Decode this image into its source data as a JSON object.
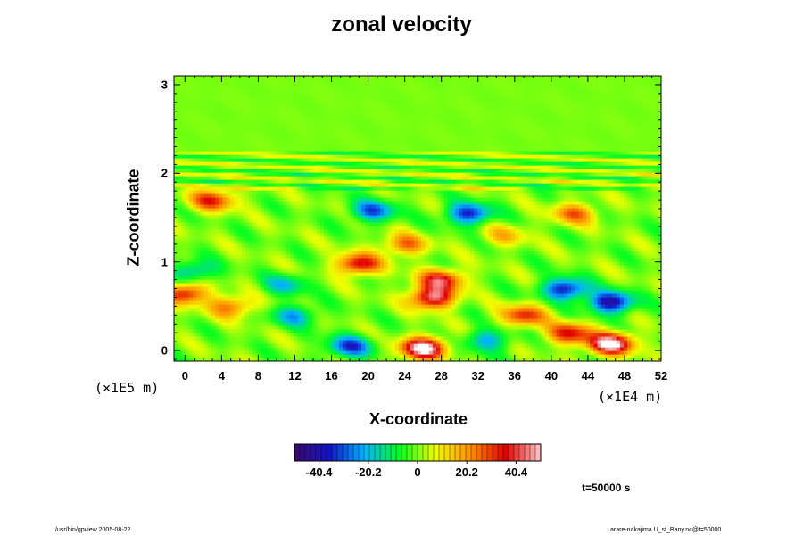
{
  "chart_data": {
    "type": "heatmap",
    "title": "zonal velocity",
    "xlabel": "X-coordinate",
    "ylabel": "Z-coordinate",
    "x_unit_label": "(×1E5 m)",
    "x_unit_label_right": "(×1E4 m)",
    "x_ticks": [
      0,
      4,
      8,
      12,
      16,
      20,
      24,
      28,
      32,
      36,
      40,
      44,
      48,
      52
    ],
    "y_ticks": [
      0,
      1,
      2,
      3
    ],
    "xlim": [
      -1.2,
      52
    ],
    "ylim": [
      -0.12,
      3.1
    ],
    "colorbar": {
      "ticks": [
        -40.4,
        -20.2,
        0,
        20.2,
        40.4
      ],
      "range": [
        -50.5,
        50.5
      ],
      "colors": [
        "#3a0a6a",
        "#1414c8",
        "#00b4ff",
        "#00ff20",
        "#f0ff00",
        "#ff9000",
        "#e00000",
        "#ffc8c8"
      ]
    },
    "features": [
      {
        "x": 27,
        "z": 0.6,
        "value": 45
      },
      {
        "x": 28,
        "z": 0.8,
        "value": 38
      },
      {
        "x": 19,
        "z": 0.98,
        "value": 38
      },
      {
        "x": 24,
        "z": 1.2,
        "value": 25
      },
      {
        "x": 26,
        "z": 0.03,
        "value": 55
      },
      {
        "x": 46.5,
        "z": 0.08,
        "value": 55
      },
      {
        "x": 42,
        "z": 0.2,
        "value": 35
      },
      {
        "x": 37,
        "z": 0.4,
        "value": 32
      },
      {
        "x": 3,
        "z": 1.7,
        "value": 32
      },
      {
        "x": 42.5,
        "z": 1.55,
        "value": 25
      },
      {
        "x": 20.5,
        "z": 1.58,
        "value": -30
      },
      {
        "x": 31,
        "z": 1.55,
        "value": -35
      },
      {
        "x": 41.5,
        "z": 0.7,
        "value": -38
      },
      {
        "x": 46.5,
        "z": 0.55,
        "value": -42
      },
      {
        "x": 18,
        "z": 0.05,
        "value": -32
      },
      {
        "x": 33,
        "z": 0.12,
        "value": -22
      },
      {
        "x": 12,
        "z": 0.4,
        "value": -22
      },
      {
        "x": 11,
        "z": 0.75,
        "value": -18
      },
      {
        "x": 1,
        "z": 0.9,
        "value": -20
      },
      {
        "x": 5,
        "z": 0.5,
        "value": 25
      },
      {
        "x": 0,
        "z": 0.65,
        "value": 35
      },
      {
        "x": 35,
        "z": 1.3,
        "value": 15
      }
    ]
  },
  "time_label": "t=50000 s",
  "footer_left": "/usr/bin/gpview 2005-08-22",
  "footer_right": "arare-nakajima U_st_Bany.nc@t=50000"
}
